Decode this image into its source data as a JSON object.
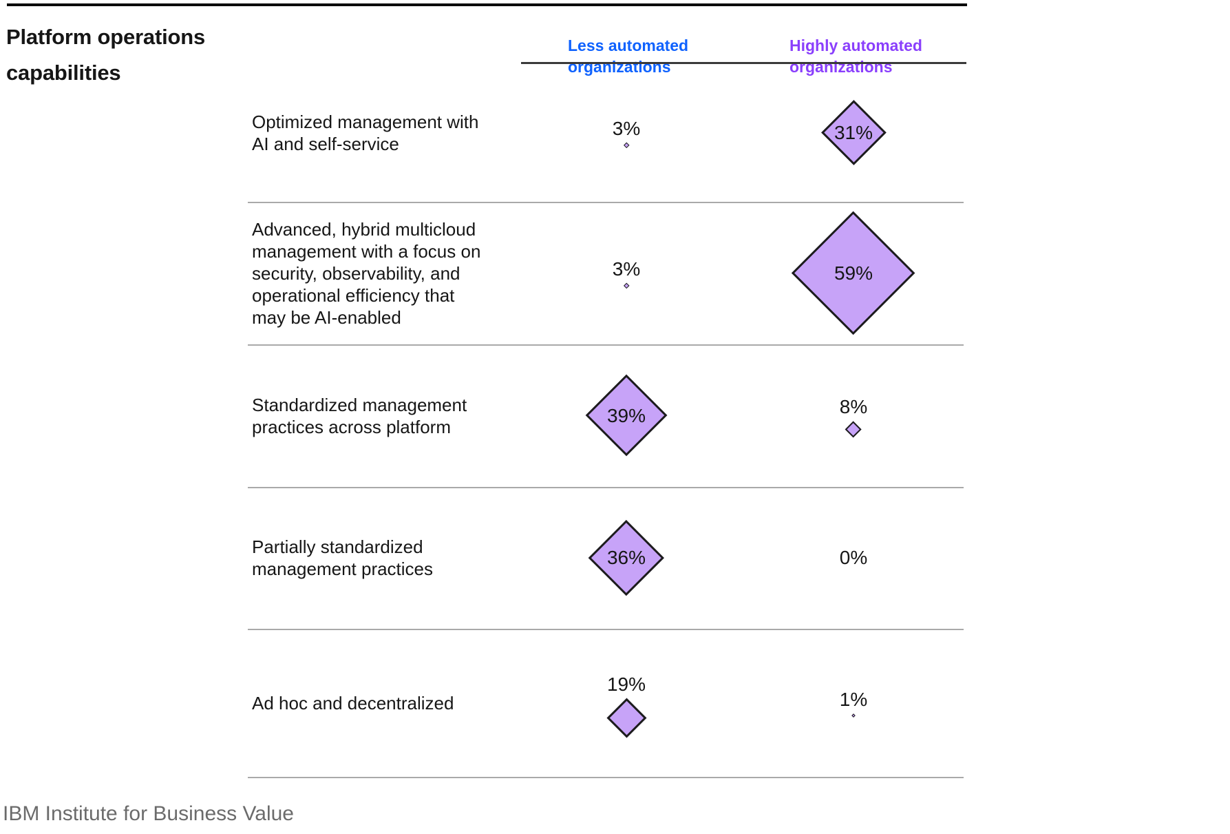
{
  "title": "Platform operations\ncapabilities",
  "columns": [
    {
      "label": "Less automated\norganizations",
      "color": "#0f62fe"
    },
    {
      "label": "Highly automated\norganizations",
      "color": "#8a3ffc"
    }
  ],
  "footer": "IBM Institute for Business Value",
  "colors": {
    "less_automated_header": "#0f62fe",
    "highly_automated_header": "#8a3ffc",
    "diamond_fill": "#c7a3f8",
    "diamond_stroke": "#1c1c1c",
    "text": "#161616",
    "separator": "#a9a9a9",
    "source_text": "#6b6b6b"
  },
  "chart_data": {
    "type": "proportional-symbol-table",
    "symbol": "diamond",
    "size_encoding": "diamond diagonal proportional to value (~3px per percentage point)",
    "title": "Platform operations capabilities",
    "value_format": "percent",
    "categories": [
      "Optimized management with\nAI and self-service",
      "Advanced, hybrid multicloud\nmanagement with a focus on\nsecurity, observability, and\noperational efficiency that\nmay be AI-enabled",
      "Standardized management\npractices across platform",
      "Partially standardized\nmanagement practices",
      "Ad hoc and decentralized"
    ],
    "series": [
      {
        "name": "Less automated organizations",
        "values": [
          3,
          3,
          39,
          36,
          19
        ]
      },
      {
        "name": "Highly automated organizations",
        "values": [
          31,
          59,
          8,
          0,
          1
        ]
      }
    ],
    "source": "IBM Institute for Business Value"
  }
}
